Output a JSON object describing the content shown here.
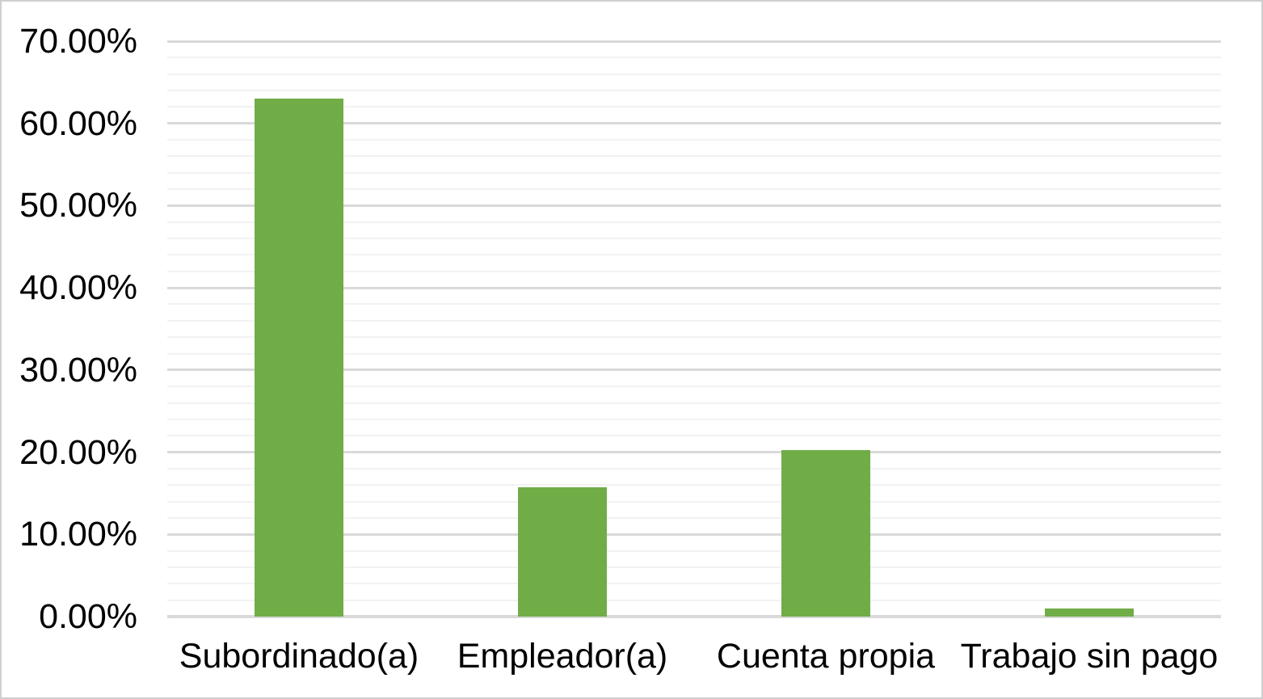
{
  "chart_data": {
    "type": "bar",
    "title": "",
    "xlabel": "",
    "ylabel": "",
    "categories": [
      "Subordinado(a)",
      "Empleador(a)",
      "Cuenta propia",
      "Trabajo sin pago"
    ],
    "values": [
      63.0,
      15.7,
      20.3,
      1.0
    ],
    "value_unit": "percent",
    "ylim": [
      0,
      70
    ],
    "y_major_step": 10,
    "y_minor_step": 2,
    "y_tick_labels": [
      "0.00%",
      "10.00%",
      "20.00%",
      "30.00%",
      "40.00%",
      "50.00%",
      "60.00%",
      "70.00%"
    ],
    "grid": "horizontal-major-and-minor",
    "legend": "none",
    "colors": {
      "bar": "#70AD47",
      "major_gridline": "#D9D9D9",
      "minor_gridline": "#F2F2F2",
      "axis_line": "#D9D9D9",
      "tick_text": "#000000",
      "background": "#FFFFFF",
      "frame_border": "#CFCFCF"
    }
  }
}
